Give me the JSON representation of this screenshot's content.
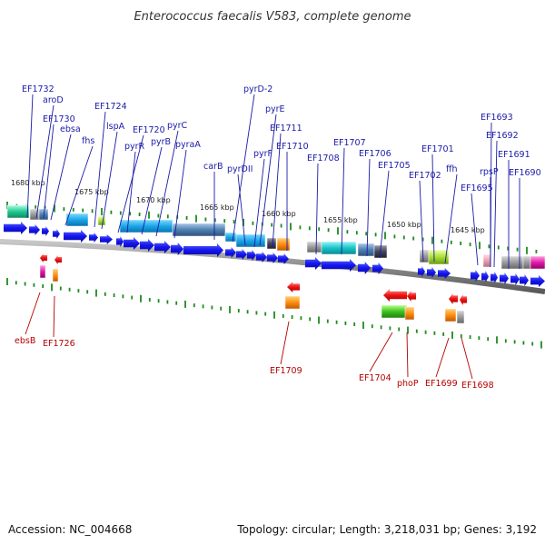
{
  "title": "Enterococcus faecalis V583, complete genome",
  "footer": {
    "accession": "Accession: NC_004668",
    "summary": "Topology: circular; Length: 3,218,031 bp; Genes: 3,192"
  },
  "colors": {
    "label_plus": "#1a1aa8",
    "label_minus": "#b40000",
    "arrow_plus": "#1111ee",
    "arrow_minus": "#ee1111",
    "ruler": "#1e8a1e",
    "backbone": "#8c8c8c"
  },
  "ruler_ticks": [
    "1680 kbp",
    "1675 kbp",
    "1670 kbp",
    "1665 kbp",
    "1660 kbp",
    "1655 kbp",
    "1650 kbp",
    "1645 kbp"
  ],
  "genes_plus": [
    "EF1732",
    "aroD",
    "EF1730",
    "ebsa",
    "fhs",
    "EF1724",
    "lspA",
    "EF1720",
    "pyrR",
    "pyrB",
    "pyrC",
    "pyraA",
    "carB",
    "pyrD-2",
    "pyrE",
    "pyrDII",
    "EF1711",
    "pyrF",
    "EF1710",
    "EF1708",
    "EF1707",
    "EF1706",
    "EF1705",
    "EF1701",
    "EF1702",
    "ffh",
    "EF1695",
    "EF1693",
    "EF1692",
    "rpsP",
    "EF1691",
    "EF1690"
  ],
  "genes_minus": [
    "ebsB",
    "EF1726",
    "EF1709",
    "EF1704",
    "phoP",
    "EF1699",
    "EF1698"
  ]
}
